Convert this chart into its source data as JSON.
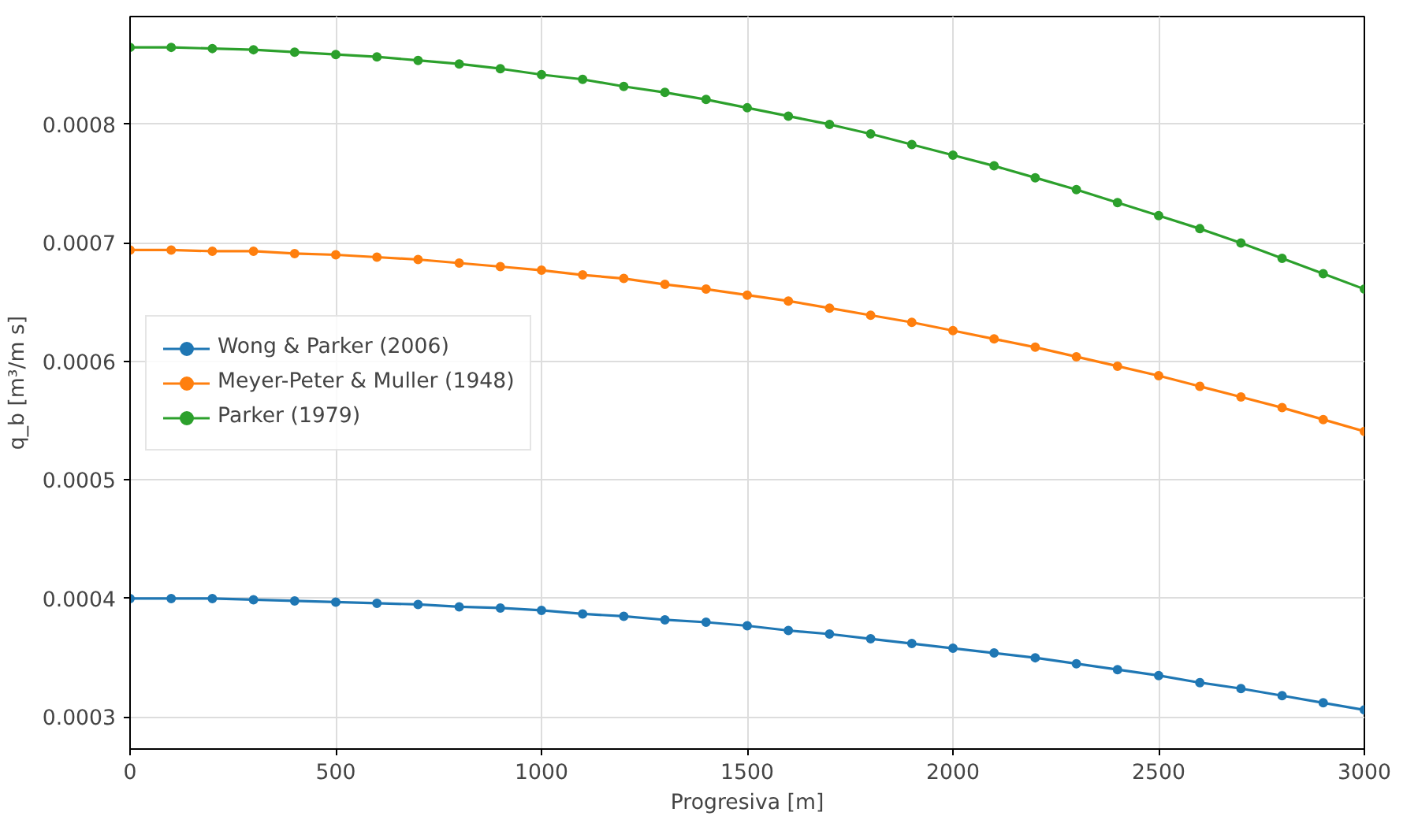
{
  "chart_data": {
    "type": "line",
    "xlabel": "Progresiva [m]",
    "ylabel": "q_b [m³/m s]",
    "x": [
      0,
      100,
      200,
      300,
      400,
      500,
      600,
      700,
      800,
      900,
      1000,
      1100,
      1200,
      1300,
      1400,
      1500,
      1600,
      1700,
      1800,
      1900,
      2000,
      2100,
      2200,
      2300,
      2400,
      2500,
      2600,
      2700,
      2800,
      2900,
      3000
    ],
    "series": [
      {
        "name": "Wong & Parker (2006)",
        "color": "#1f77b4",
        "values": [
          0.0004,
          0.0004,
          0.0004,
          0.000399,
          0.000398,
          0.000397,
          0.000396,
          0.000395,
          0.000393,
          0.000392,
          0.00039,
          0.000387,
          0.000385,
          0.000382,
          0.00038,
          0.000377,
          0.000373,
          0.00037,
          0.000366,
          0.000362,
          0.000358,
          0.000354,
          0.00035,
          0.000345,
          0.00034,
          0.000335,
          0.000329,
          0.000324,
          0.000318,
          0.000312,
          0.000306
        ]
      },
      {
        "name": "Meyer-Peter & Muller (1948)",
        "color": "#ff7f0e",
        "values": [
          0.000694,
          0.000694,
          0.000693,
          0.000693,
          0.000691,
          0.00069,
          0.000688,
          0.000686,
          0.000683,
          0.00068,
          0.000677,
          0.000673,
          0.00067,
          0.000665,
          0.000661,
          0.000656,
          0.000651,
          0.000645,
          0.000639,
          0.000633,
          0.000626,
          0.000619,
          0.000612,
          0.000604,
          0.000596,
          0.000588,
          0.000579,
          0.00057,
          0.000561,
          0.000551,
          0.000541
        ]
      },
      {
        "name": "Parker (1979)",
        "color": "#2ca02c",
        "values": [
          0.000865,
          0.000865,
          0.000864,
          0.000863,
          0.000861,
          0.000859,
          0.000857,
          0.000854,
          0.000851,
          0.000847,
          0.000842,
          0.000838,
          0.000832,
          0.000827,
          0.000821,
          0.000814,
          0.000807,
          0.0008,
          0.000792,
          0.000783,
          0.000774,
          0.000765,
          0.000755,
          0.000745,
          0.000734,
          0.000723,
          0.000712,
          0.0007,
          0.000687,
          0.000674,
          0.000661
        ]
      }
    ],
    "xlim": [
      0,
      3000
    ],
    "xticks": [
      0,
      500,
      1000,
      1500,
      2000,
      2500,
      3000
    ],
    "ylim": [
      0.000273,
      0.000891
    ],
    "yticks": [
      0.0003,
      0.0004,
      0.0005,
      0.0006,
      0.0007,
      0.0008
    ],
    "grid": true,
    "legend": "left",
    "marker": "circle",
    "line_style": "solid"
  }
}
